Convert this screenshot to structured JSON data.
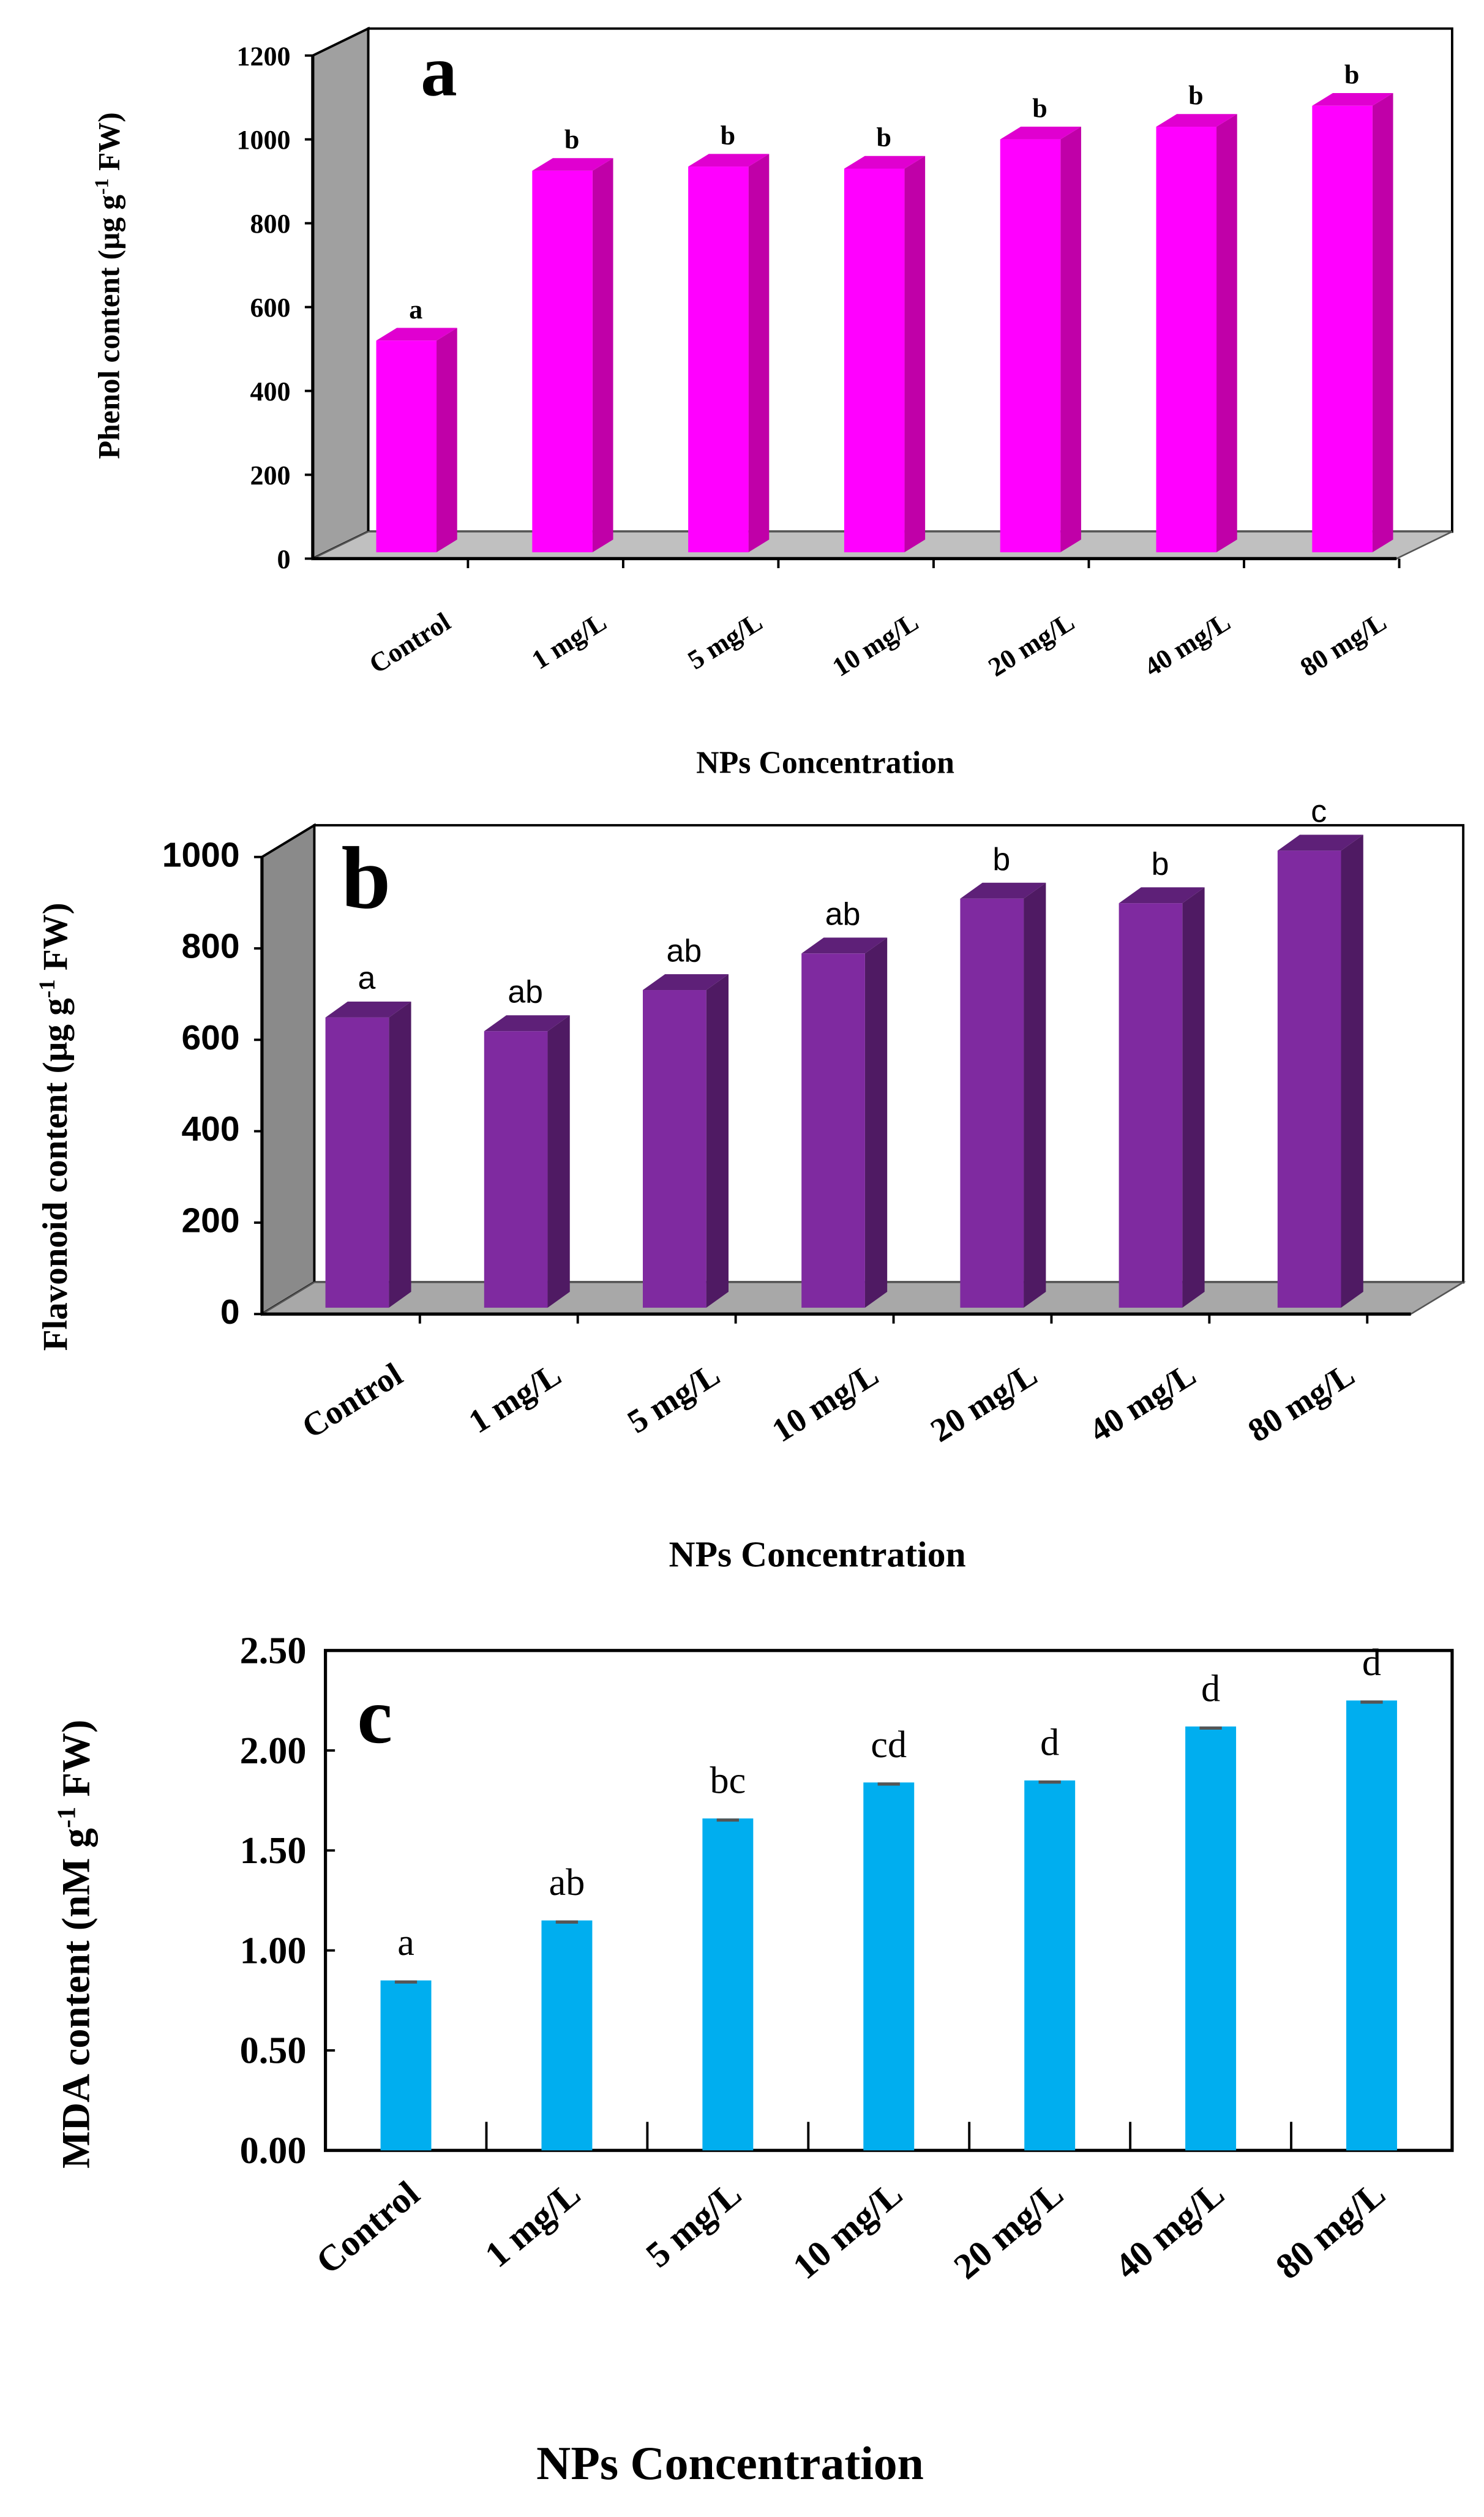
{
  "chart_data": [
    {
      "panel": "a",
      "type": "bar",
      "style": "3d",
      "categories": [
        "Control",
        "1 mg/L",
        "5 mg/L",
        "10 mg/L",
        "20 mg/L",
        "40 mg/L",
        "80 mg/L"
      ],
      "values": [
        505,
        910,
        920,
        915,
        985,
        1015,
        1065
      ],
      "significance_letters": [
        "a",
        "b",
        "b",
        "b",
        "b",
        "b",
        "b"
      ],
      "xlabel": "NPs Concentration",
      "ylabel": "Phenol content (µg g",
      "ylabel_sup": "-1",
      "ylabel_end": " FW)",
      "ylim": [
        0,
        1200
      ],
      "yticks": [
        0,
        200,
        400,
        600,
        800,
        1000,
        1200
      ],
      "colors": {
        "front": "#ff00ff",
        "side": "#c000a8",
        "top": "#e000d0",
        "wall": "#a0a0a0",
        "floor": "#c0c0c0"
      }
    },
    {
      "panel": "b",
      "type": "bar",
      "style": "3d",
      "categories": [
        "Control",
        "1 mg/L",
        "5 mg/L",
        "10 mg/L",
        "20 mg/L",
        "40 mg/L",
        "80 mg/L"
      ],
      "values": [
        635,
        605,
        695,
        775,
        895,
        885,
        1000
      ],
      "significance_letters": [
        "a",
        "ab",
        "ab",
        "ab",
        "b",
        "b",
        "c"
      ],
      "xlabel": "NPs Concentration",
      "ylabel": "Flavonoid content  (µg g",
      "ylabel_sup": "-1",
      "ylabel_end": " FW)",
      "ylim": [
        0,
        1000
      ],
      "yticks": [
        0,
        200,
        400,
        600,
        800,
        1000
      ],
      "colors": {
        "front": "#7f2aa0",
        "side": "#4f1a63",
        "top": "#5e2078",
        "wall": "#8a8a8a",
        "floor": "#a8a8a8"
      }
    },
    {
      "panel": "c",
      "type": "bar",
      "style": "flat",
      "categories": [
        "Control",
        "1 mg/L",
        "5 mg/L",
        "10 mg/L",
        "20 mg/L",
        "40 mg/L",
        "80 mg/L"
      ],
      "values": [
        0.85,
        1.15,
        1.66,
        1.84,
        1.85,
        2.12,
        2.25
      ],
      "significance_letters": [
        "a",
        "ab",
        "bc",
        "cd",
        "d",
        "d",
        "d"
      ],
      "xlabel": "NPs Concentration",
      "ylabel": "MDA content (nM g",
      "ylabel_sup": "-1",
      "ylabel_end": " FW)",
      "ylim": [
        0,
        2.5
      ],
      "yticks": [
        "0.00",
        "0.50",
        "1.00",
        "1.50",
        "2.00",
        "2.50"
      ],
      "colors": {
        "front": "#00aeef",
        "errorbar": "#555555"
      }
    }
  ]
}
